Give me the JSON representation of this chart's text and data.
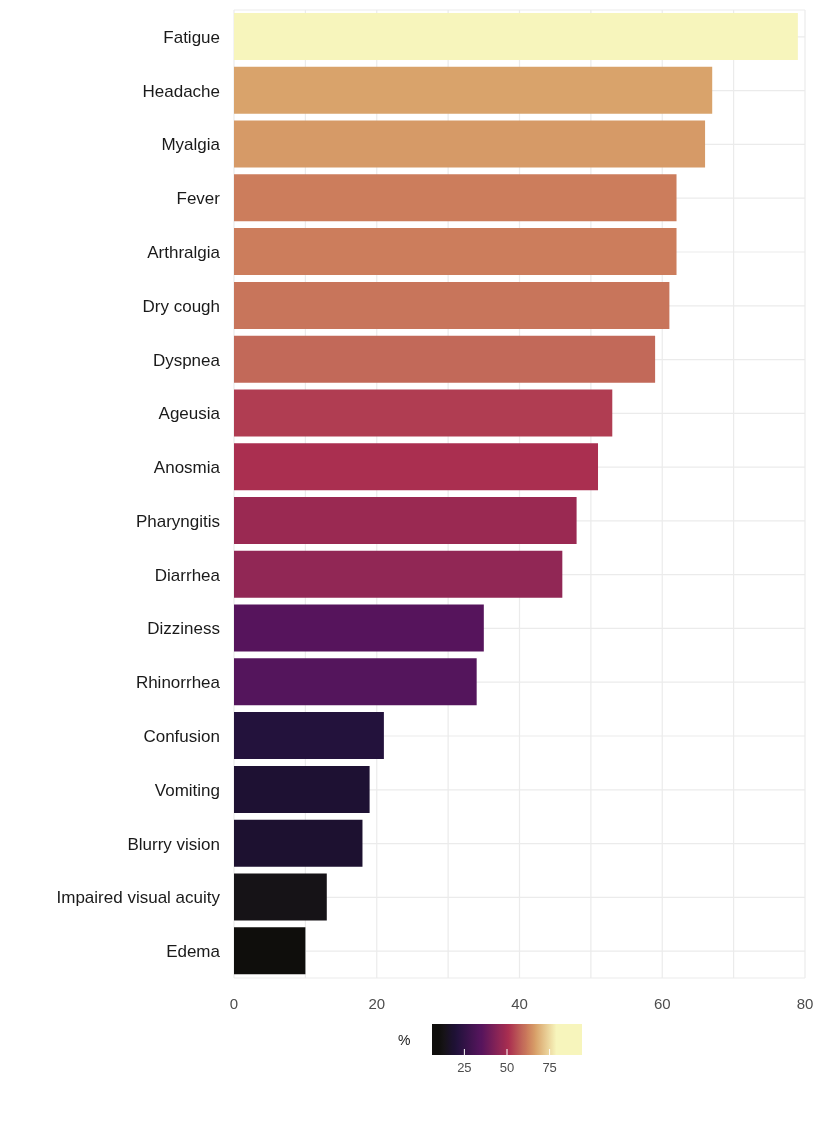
{
  "chart_data": {
    "type": "bar",
    "orientation": "horizontal",
    "categories": [
      "Fatigue",
      "Headache",
      "Myalgia",
      "Fever",
      "Arthralgia",
      "Dry cough",
      "Dyspnea",
      "Ageusia",
      "Anosmia",
      "Pharyngitis",
      "Diarrhea",
      "Dizziness",
      "Rhinorrhea",
      "Confusion",
      "Vomiting",
      "Blurry vision",
      "Impaired visual acuity",
      "Edema"
    ],
    "values": [
      79,
      67,
      66,
      62,
      62,
      61,
      59,
      53,
      51,
      48,
      46,
      35,
      34,
      21,
      19,
      18,
      13,
      10
    ],
    "colors": [
      "#f7f5bc",
      "#d9a36b",
      "#d69a67",
      "#cc7d5c",
      "#cc7d5c",
      "#c8755b",
      "#c26959",
      "#b03d52",
      "#aa2f50",
      "#9a2952",
      "#912755",
      "#56145c",
      "#54155c",
      "#23123c",
      "#1e1133",
      "#1d1130",
      "#161317",
      "#0f0e0c"
    ],
    "xlim": [
      0,
      80
    ],
    "xticks": [
      0,
      {
        "value": 10,
        "label": null
      },
      20,
      {
        "value": 30,
        "label": null
      },
      40,
      {
        "value": 50,
        "label": null
      },
      60,
      {
        "value": 70,
        "label": null
      },
      80
    ],
    "grid": true,
    "clabel": "%",
    "clim": [
      6,
      94
    ],
    "cticks": [
      25,
      50,
      75
    ]
  }
}
